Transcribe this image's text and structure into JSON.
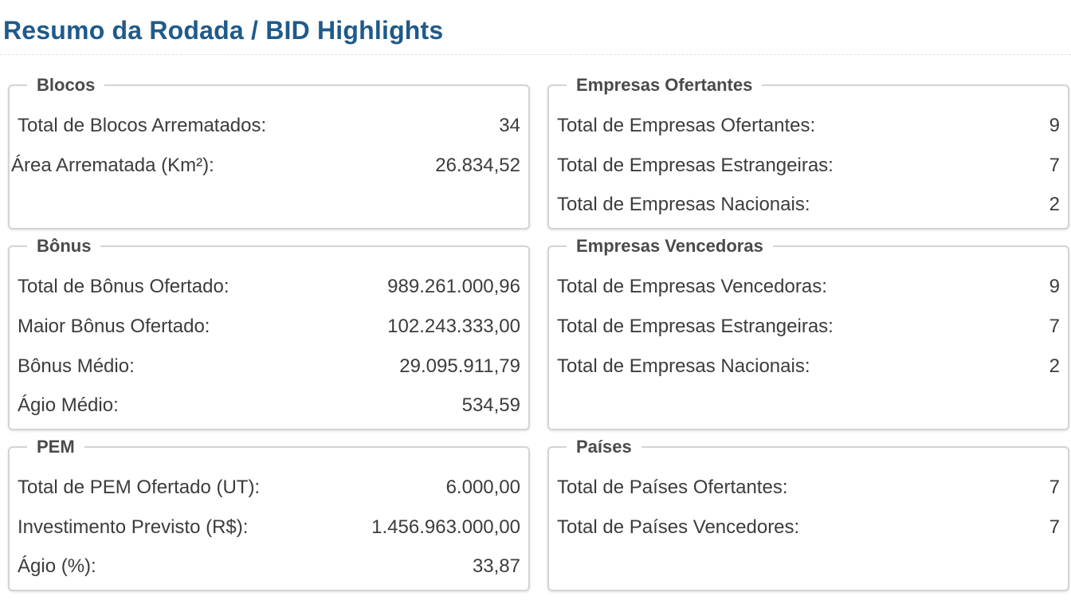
{
  "page": {
    "title": "Resumo da Rodada / BID Highlights"
  },
  "panels": {
    "blocos": {
      "legend": "Blocos",
      "rows": [
        {
          "label": "Total de Blocos Arrematados:",
          "value": "34"
        },
        {
          "label": "Área Arrematada (Km²):",
          "value": "26.834,52"
        }
      ]
    },
    "bonus": {
      "legend": "Bônus",
      "rows": [
        {
          "label": "Total de Bônus Ofertado:",
          "value": "989.261.000,96"
        },
        {
          "label": "Maior Bônus Ofertado:",
          "value": "102.243.333,00"
        },
        {
          "label": "Bônus Médio:",
          "value": "29.095.911,79"
        },
        {
          "label": "Ágio Médio:",
          "value": "534,59"
        }
      ]
    },
    "pem": {
      "legend": "PEM",
      "rows": [
        {
          "label": "Total de PEM Ofertado (UT):",
          "value": "6.000,00"
        },
        {
          "label": "Investimento Previsto (R$):",
          "value": "1.456.963.000,00"
        },
        {
          "label": "Ágio (%):",
          "value": "33,87"
        }
      ]
    },
    "empresas_ofertantes": {
      "legend": "Empresas Ofertantes",
      "rows": [
        {
          "label": "Total de Empresas Ofertantes:",
          "value": "9"
        },
        {
          "label": "Total de Empresas Estrangeiras:",
          "value": "7"
        },
        {
          "label": "Total de Empresas Nacionais:",
          "value": "2"
        }
      ]
    },
    "empresas_vencedoras": {
      "legend": "Empresas Vencedoras",
      "rows": [
        {
          "label": "Total de Empresas Vencedoras:",
          "value": "9"
        },
        {
          "label": "Total de Empresas Estrangeiras:",
          "value": "7"
        },
        {
          "label": "Total de Empresas Nacionais:",
          "value": "2"
        }
      ]
    },
    "paises": {
      "legend": "Países",
      "rows": [
        {
          "label": "Total de Países Ofertantes:",
          "value": "7"
        },
        {
          "label": "Total de Países Vencedores:",
          "value": "7"
        }
      ]
    }
  }
}
